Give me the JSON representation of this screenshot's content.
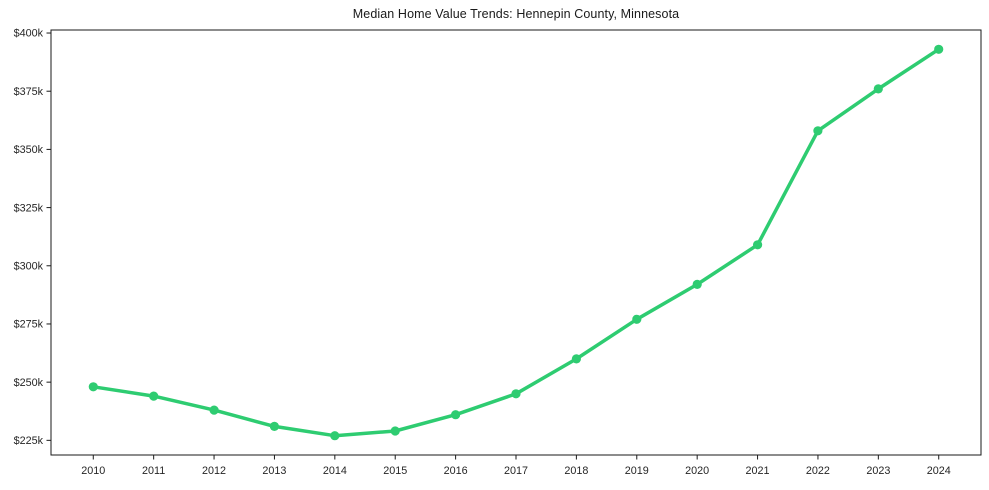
{
  "chart_data": {
    "type": "line",
    "title": "Median Home Value Trends: Hennepin County, Minnesota",
    "xlabel": "",
    "ylabel": "",
    "x": [
      2010,
      2011,
      2012,
      2013,
      2014,
      2015,
      2016,
      2017,
      2018,
      2019,
      2020,
      2021,
      2022,
      2023,
      2024
    ],
    "values": [
      248,
      244,
      238,
      231,
      227,
      229,
      236,
      245,
      260,
      277,
      292,
      309,
      358,
      376,
      393
    ],
    "value_unit": "USD thousands",
    "line_color": "#2ecc71",
    "xlim": [
      2009.3,
      2024.7
    ],
    "ylim": [
      218.7,
      401.3
    ],
    "xtick_labels": [
      "2010",
      "2011",
      "2012",
      "2013",
      "2014",
      "2015",
      "2016",
      "2017",
      "2018",
      "2019",
      "2020",
      "2021",
      "2022",
      "2023",
      "2024"
    ],
    "ytick_values": [
      225,
      250,
      275,
      300,
      325,
      350,
      375,
      400
    ],
    "ytick_labels": [
      "$225k",
      "$250k",
      "$275k",
      "$300k",
      "$325k",
      "$350k",
      "$375k",
      "$400k"
    ],
    "grid": false,
    "legend": "none",
    "axis_color": "#1a1a1a",
    "tick_label_color": "#262626",
    "background": "#ffffff"
  }
}
